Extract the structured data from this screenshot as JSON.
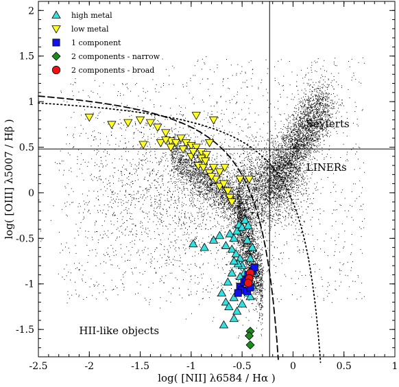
{
  "chart_data": {
    "type": "scatter",
    "title": "",
    "xlabel": "log( [NII] λ6584 / Hα )",
    "ylabel": "log( [OIII] λ5007 / Hβ )",
    "xlim": [
      -2.5,
      1.0
    ],
    "ylim": [
      -1.8,
      2.1
    ],
    "xticks": [
      -2.5,
      -2,
      -1.5,
      -1,
      -0.5,
      0,
      0.5,
      1
    ],
    "xtick_labels": [
      "-2.5",
      "-2",
      "-1.5",
      "-1",
      "-0.5",
      "0",
      "0.5",
      "1"
    ],
    "yticks": [
      -1.5,
      -1,
      -0.5,
      0,
      0.5,
      1,
      1.5,
      2
    ],
    "ytick_labels": [
      "-1.5",
      "-1",
      "-0.5",
      "0",
      "0.5",
      "1",
      "1.5",
      "2"
    ],
    "grid": false,
    "legend_position": "top-left",
    "reference_lines": {
      "vertical_x": -0.23,
      "horizontal_y": 0.48
    },
    "annotations": [
      {
        "text": "Seyferts",
        "x": 0.13,
        "y": 0.72
      },
      {
        "text": "LINERs",
        "x": 0.13,
        "y": 0.24
      },
      {
        "text": "HII-like objects",
        "x": -2.1,
        "y": -1.55
      }
    ],
    "background_sample": {
      "description_name": "sdss galaxies",
      "color": "#000000"
    },
    "curves": [
      {
        "style": "dashed",
        "color": "#000000"
      },
      {
        "style": "dotted",
        "color": "#000000"
      }
    ],
    "series": [
      {
        "name": "high metal",
        "marker": "triangle-up",
        "color": "#33e0e0",
        "points": [
          [
            -0.98,
            -0.56
          ],
          [
            -0.87,
            -0.6
          ],
          [
            -0.78,
            -0.52
          ],
          [
            -0.72,
            -0.47
          ],
          [
            -0.66,
            -0.58
          ],
          [
            -0.62,
            -0.45
          ],
          [
            -0.58,
            -0.5
          ],
          [
            -0.55,
            -0.42
          ],
          [
            -0.53,
            -0.35
          ],
          [
            -0.5,
            -0.38
          ],
          [
            -0.47,
            -0.3
          ],
          [
            -0.44,
            -0.36
          ],
          [
            -0.6,
            -0.62
          ],
          [
            -0.56,
            -0.67
          ],
          [
            -0.52,
            -0.72
          ],
          [
            -0.5,
            -0.8
          ],
          [
            -0.54,
            -0.78
          ],
          [
            -0.58,
            -0.75
          ],
          [
            -0.48,
            -0.88
          ],
          [
            -0.46,
            -0.95
          ],
          [
            -0.52,
            -0.92
          ],
          [
            -0.6,
            -0.88
          ],
          [
            -0.64,
            -0.98
          ],
          [
            -0.7,
            -1.1
          ],
          [
            -0.66,
            -1.2
          ],
          [
            -0.63,
            -1.25
          ],
          [
            -0.58,
            -1.15
          ],
          [
            -0.55,
            -1.3
          ],
          [
            -0.5,
            -1.22
          ],
          [
            -0.44,
            -1.1
          ],
          [
            -0.4,
            -1.02
          ],
          [
            -0.68,
            -1.45
          ],
          [
            -0.58,
            -1.38
          ],
          [
            -0.42,
            -1.14
          ],
          [
            -0.38,
            -0.88
          ],
          [
            -0.42,
            -0.72
          ],
          [
            -0.45,
            -0.52
          ],
          [
            -0.4,
            -0.6
          ]
        ]
      },
      {
        "name": "low metal",
        "marker": "triangle-down",
        "color": "#ffff22",
        "points": [
          [
            -2.0,
            0.83
          ],
          [
            -1.78,
            0.75
          ],
          [
            -1.62,
            0.77
          ],
          [
            -1.5,
            0.8
          ],
          [
            -1.4,
            0.77
          ],
          [
            -1.33,
            0.72
          ],
          [
            -1.47,
            0.53
          ],
          [
            -1.25,
            0.66
          ],
          [
            -1.2,
            0.57
          ],
          [
            -1.15,
            0.55
          ],
          [
            -1.1,
            0.6
          ],
          [
            -1.05,
            0.55
          ],
          [
            -1.0,
            0.52
          ],
          [
            -0.95,
            0.5
          ],
          [
            -0.9,
            0.45
          ],
          [
            -0.85,
            0.42
          ],
          [
            -0.78,
            0.8
          ],
          [
            -1.0,
            0.4
          ],
          [
            -0.93,
            0.3
          ],
          [
            -0.88,
            0.28
          ],
          [
            -0.82,
            0.22
          ],
          [
            -0.76,
            0.15
          ],
          [
            -0.72,
            0.07
          ],
          [
            -0.68,
            0.1
          ],
          [
            -0.64,
            0.02
          ],
          [
            -0.62,
            -0.05
          ],
          [
            -0.6,
            -0.1
          ],
          [
            -0.95,
            0.85
          ],
          [
            -0.82,
            0.55
          ],
          [
            -1.2,
            0.5
          ],
          [
            -1.08,
            0.48
          ],
          [
            -0.98,
            0.45
          ],
          [
            -0.9,
            0.38
          ],
          [
            -0.86,
            0.35
          ],
          [
            -0.52,
            0.15
          ],
          [
            -0.43,
            0.15
          ],
          [
            -0.78,
            0.28
          ],
          [
            -0.8,
            0.18
          ],
          [
            -0.72,
            0.23
          ],
          [
            -0.67,
            0.28
          ],
          [
            -1.3,
            0.55
          ],
          [
            -1.25,
            0.58
          ]
        ]
      },
      {
        "name": "1 component",
        "marker": "square",
        "color": "#1111ee",
        "points": [
          [
            -0.52,
            -1.03
          ],
          [
            -0.48,
            -0.98
          ],
          [
            -0.46,
            -0.95
          ],
          [
            -0.44,
            -0.9
          ],
          [
            -0.4,
            -0.86
          ],
          [
            -0.38,
            -0.82
          ],
          [
            -0.5,
            -1.07
          ],
          [
            -0.54,
            -1.1
          ],
          [
            -0.45,
            -1.08
          ],
          [
            -0.42,
            -1.04
          ]
        ]
      },
      {
        "name": "2 components - narrow",
        "marker": "diamond",
        "color": "#1a8c1a",
        "points": [
          [
            -0.42,
            -1.52
          ],
          [
            -0.43,
            -1.57
          ],
          [
            -0.42,
            -1.67
          ]
        ]
      },
      {
        "name": "2 components - broad",
        "marker": "circle",
        "color": "#ee1111",
        "points": [
          [
            -0.42,
            -0.88
          ],
          [
            -0.43,
            -0.94
          ],
          [
            -0.44,
            -0.99
          ]
        ]
      }
    ]
  }
}
